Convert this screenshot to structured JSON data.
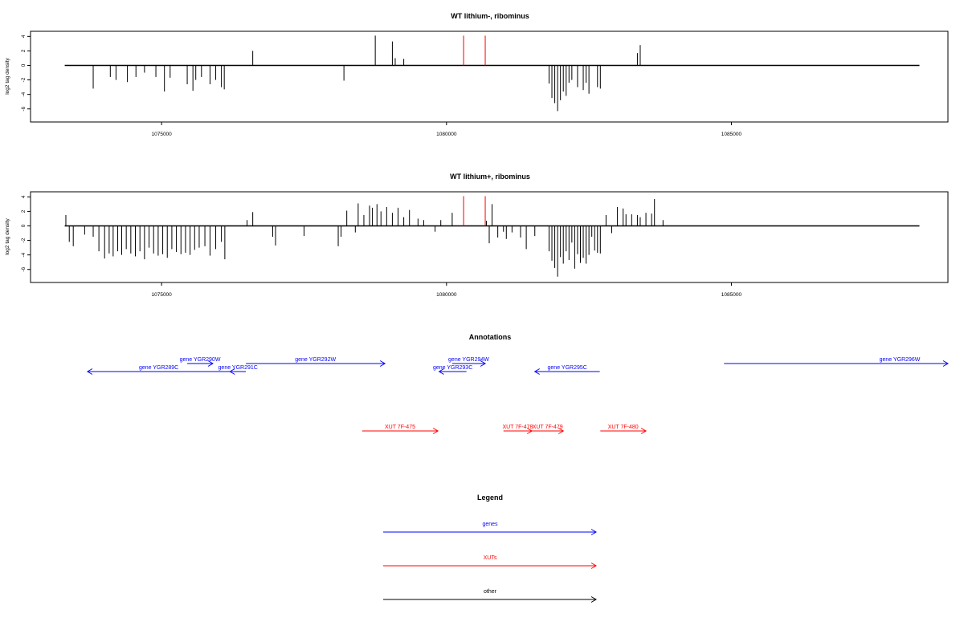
{
  "chart_data": [
    {
      "type": "bar",
      "title": "WT lithium-, ribominus",
      "ylabel": "log2 tag density",
      "xlim": [
        1072700,
        1088800
      ],
      "ylim": [
        -7.8,
        4.7
      ],
      "yticks": [
        4,
        2,
        0,
        -2,
        -4,
        -6
      ],
      "xticks": [
        1075000,
        1080000,
        1085000
      ],
      "baseline_range": [
        1073300,
        1088300
      ],
      "series": [
        {
          "color": "#000000",
          "x": [
            1073800,
            1074100,
            1074200,
            1074400,
            1074550,
            1074700,
            1074900,
            1075050,
            1075150,
            1075450,
            1075550,
            1075600,
            1075700,
            1075850,
            1075950,
            1076050,
            1076100,
            1076600,
            1078200,
            1078750,
            1079050,
            1079100,
            1079250,
            1081800,
            1081850,
            1081900,
            1081950,
            1082000,
            1082050,
            1082100,
            1082150,
            1082200,
            1082300,
            1082400,
            1082450,
            1082500,
            1082650,
            1082700,
            1083350,
            1083400
          ],
          "y": [
            -3.2,
            -1.6,
            -2.0,
            -2.3,
            -1.6,
            -1.0,
            -1.6,
            -3.6,
            -1.7,
            -2.6,
            -3.5,
            -2.0,
            -1.6,
            -2.6,
            -2.0,
            -3.0,
            -3.3,
            2.0,
            -2.1,
            4.1,
            3.3,
            1.0,
            0.9,
            -2.5,
            -4.5,
            -5.2,
            -6.3,
            -4.8,
            -3.6,
            -4.2,
            -2.4,
            -2.0,
            -3.0,
            -3.4,
            -2.4,
            -3.9,
            -3.0,
            -3.2,
            1.7,
            2.8
          ]
        },
        {
          "color": "#ff0000",
          "x": [
            1080300,
            1080680
          ],
          "y": [
            4.1,
            4.1
          ]
        }
      ]
    },
    {
      "type": "bar",
      "title": "WT lithium+, ribominus",
      "ylabel": "log2 tag density",
      "xlim": [
        1072700,
        1088800
      ],
      "ylim": [
        -7.8,
        4.7
      ],
      "yticks": [
        4,
        2,
        0,
        -2,
        -4,
        -6
      ],
      "xticks": [
        1075000,
        1080000,
        1085000
      ],
      "baseline_range": [
        1073300,
        1088300
      ],
      "series": [
        {
          "color": "#000000",
          "x": [
            1073320,
            1073380,
            1073450,
            1073650,
            1073800,
            1073900,
            1074000,
            1074080,
            1074150,
            1074230,
            1074300,
            1074380,
            1074460,
            1074540,
            1074620,
            1074700,
            1074780,
            1074860,
            1074940,
            1075020,
            1075100,
            1075180,
            1075260,
            1075340,
            1075420,
            1075500,
            1075580,
            1075660,
            1075760,
            1075850,
            1075950,
            1076050,
            1076110,
            1076500,
            1076600,
            1076950,
            1077000,
            1077500,
            1078100,
            1078150,
            1078250,
            1078400,
            1078450,
            1078550,
            1078650,
            1078700,
            1078780,
            1078850,
            1078950,
            1079050,
            1079150,
            1079250,
            1079350,
            1079500,
            1079600,
            1079800,
            1079900,
            1080100,
            1080700,
            1080750,
            1080800,
            1080900,
            1081000,
            1081050,
            1081150,
            1081300,
            1081400,
            1081550,
            1081800,
            1081850,
            1081900,
            1081950,
            1082000,
            1082050,
            1082100,
            1082150,
            1082200,
            1082250,
            1082300,
            1082350,
            1082400,
            1082450,
            1082500,
            1082550,
            1082600,
            1082650,
            1082700,
            1082800,
            1082900,
            1083000,
            1083100,
            1083150,
            1083250,
            1083350,
            1083400,
            1083500,
            1083600,
            1083650,
            1083800
          ],
          "y": [
            1.5,
            -2.2,
            -2.8,
            -1.2,
            -1.5,
            -3.5,
            -4.5,
            -3.8,
            -4.2,
            -3.5,
            -4.0,
            -3.2,
            -3.8,
            -4.2,
            -3.5,
            -4.6,
            -3.0,
            -3.8,
            -4.1,
            -3.9,
            -4.4,
            -3.2,
            -3.6,
            -3.9,
            -3.7,
            -4.0,
            -3.3,
            -3.0,
            -2.8,
            -4.1,
            -3.2,
            -2.2,
            -4.6,
            0.8,
            1.9,
            -1.5,
            -2.7,
            -1.4,
            -2.8,
            -1.5,
            2.1,
            -0.9,
            3.1,
            1.5,
            2.8,
            2.5,
            3.0,
            2.0,
            2.6,
            1.8,
            2.5,
            1.2,
            2.2,
            1.0,
            0.8,
            -0.8,
            0.8,
            1.8,
            0.7,
            -2.4,
            3.0,
            -1.6,
            -0.8,
            -1.8,
            -0.9,
            -1.6,
            -3.2,
            -1.4,
            -3.5,
            -4.8,
            -5.8,
            -7.0,
            -4.3,
            -5.2,
            -3.5,
            -4.7,
            -2.3,
            -5.9,
            -3.9,
            -5.1,
            -4.4,
            -5.2,
            -4.0,
            -1.5,
            -3.4,
            -3.7,
            -3.8,
            1.5,
            -1.0,
            2.6,
            2.4,
            1.6,
            1.6,
            1.5,
            1.2,
            1.8,
            1.7,
            3.7,
            0.8
          ]
        },
        {
          "color": "#ff0000",
          "x": [
            1080300,
            1080680
          ],
          "y": [
            4.1,
            4.1
          ]
        }
      ]
    }
  ],
  "annotations": {
    "title": "Annotations",
    "xlim": [
      1072700,
      1088800
    ],
    "genes": [
      {
        "label": "gene YGR289C",
        "start": 1076200,
        "end": 1073700,
        "row": 1
      },
      {
        "label": "gene YGR290W",
        "start": 1075450,
        "end": 1075900,
        "row": 0
      },
      {
        "label": "gene YGR291C",
        "start": 1076480,
        "end": 1076200,
        "row": 1
      },
      {
        "label": "gene YGR292W",
        "start": 1076480,
        "end": 1078920,
        "row": 0
      },
      {
        "label": "gene YGR293C",
        "start": 1080350,
        "end": 1079870,
        "row": 1
      },
      {
        "label": "gene YGR294W",
        "start": 1080100,
        "end": 1080680,
        "row": 0
      },
      {
        "label": "gene YGR295C",
        "start": 1082690,
        "end": 1081550,
        "row": 1
      },
      {
        "label": "gene YGR296W",
        "start": 1084870,
        "end": 1088800,
        "row": 0
      }
    ],
    "xuts": [
      {
        "label": "XUT 7F-475",
        "start": 1078520,
        "end": 1079850
      },
      {
        "label": "XUT 7F-478",
        "start": 1081000,
        "end": 1081500
      },
      {
        "label": "XUT 7F-479",
        "start": 1081500,
        "end": 1082050
      },
      {
        "label": "XUT 7F-480",
        "start": 1082700,
        "end": 1083500
      }
    ]
  },
  "legend": {
    "title": "Legend",
    "items": [
      {
        "label": "genes",
        "color": "#0000ff"
      },
      {
        "label": "XUTs",
        "color": "#ff0000"
      },
      {
        "label": "other",
        "color": "#000000"
      }
    ]
  }
}
